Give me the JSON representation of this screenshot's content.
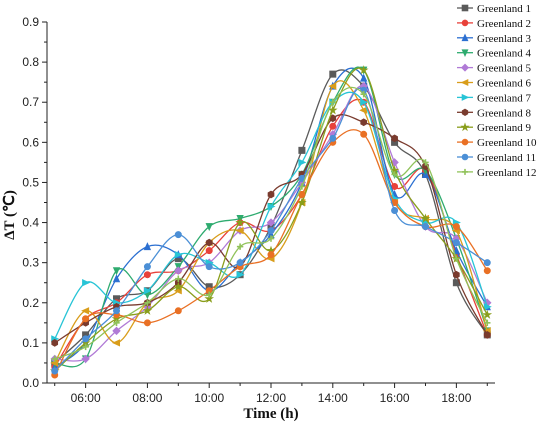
{
  "chart_data": {
    "type": "line",
    "title": "",
    "xlabel": "Time (h)",
    "ylabel": "ΔT (℃)",
    "xlim": [
      4.75,
      19.25
    ],
    "ylim": [
      0,
      0.9
    ],
    "x_ticks": [
      6,
      8,
      10,
      12,
      14,
      16,
      18
    ],
    "x_tick_labels": [
      "06:00",
      "08:00",
      "10:00",
      "12:00",
      "14:00",
      "16:00",
      "18:00"
    ],
    "y_ticks": [
      0,
      0.1,
      0.2,
      0.3,
      0.4,
      0.5,
      0.6,
      0.7,
      0.8,
      0.9
    ],
    "y_tick_labels": [
      "0.0",
      "0.1",
      "0.2",
      "0.3",
      "0.4",
      "0.5",
      "0.6",
      "0.7",
      "0.8",
      "0.9"
    ],
    "grid": false,
    "legend_position": "top-right",
    "smoothed": true,
    "x": [
      5,
      6,
      7,
      8,
      9,
      10,
      11,
      12,
      13,
      14,
      15,
      16,
      17,
      18,
      19
    ],
    "x_labels": [
      "05:00",
      "06:00",
      "07:00",
      "08:00",
      "09:00",
      "10:00",
      "11:00",
      "12:00",
      "13:00",
      "14:00",
      "15:00",
      "16:00",
      "17:00",
      "18:00",
      "19:00"
    ],
    "series": [
      {
        "name": "Greenland 1",
        "color": "#5a5a5a",
        "marker": "square",
        "values": [
          0.05,
          0.12,
          0.21,
          0.23,
          0.31,
          0.24,
          0.27,
          0.39,
          0.58,
          0.77,
          0.74,
          0.6,
          0.52,
          0.25,
          0.12
        ]
      },
      {
        "name": "Greenland 2",
        "color": "#e8413a",
        "marker": "circle",
        "values": [
          0.04,
          0.16,
          0.2,
          0.27,
          0.28,
          0.33,
          0.4,
          0.38,
          0.47,
          0.64,
          0.7,
          0.49,
          0.53,
          0.32,
          0.12
        ]
      },
      {
        "name": "Greenland 3",
        "color": "#2b6fd1",
        "marker": "triangle-up",
        "values": [
          0.04,
          0.1,
          0.26,
          0.34,
          0.32,
          0.23,
          0.3,
          0.37,
          0.5,
          0.74,
          0.76,
          0.47,
          0.52,
          0.33,
          0.19
        ]
      },
      {
        "name": "Greenland 4",
        "color": "#2eab6f",
        "marker": "triangle-down",
        "values": [
          0.05,
          0.06,
          0.28,
          0.22,
          0.29,
          0.39,
          0.41,
          0.44,
          0.52,
          0.7,
          0.78,
          0.52,
          0.53,
          0.36,
          0.13
        ]
      },
      {
        "name": "Greenland 5",
        "color": "#b07ad6",
        "marker": "diamond",
        "values": [
          0.06,
          0.06,
          0.13,
          0.19,
          0.28,
          0.3,
          0.38,
          0.4,
          0.5,
          0.62,
          0.74,
          0.55,
          0.39,
          0.36,
          0.2
        ]
      },
      {
        "name": "Greenland 6",
        "color": "#d99d1b",
        "marker": "triangle-left",
        "values": [
          0.05,
          0.18,
          0.1,
          0.2,
          0.23,
          0.35,
          0.38,
          0.31,
          0.45,
          0.74,
          0.68,
          0.45,
          0.41,
          0.38,
          0.13
        ]
      },
      {
        "name": "Greenland 7",
        "color": "#27c4d6",
        "marker": "triangle-right",
        "values": [
          0.11,
          0.25,
          0.2,
          0.23,
          0.32,
          0.3,
          0.27,
          0.44,
          0.55,
          0.7,
          0.7,
          0.46,
          0.4,
          0.4,
          0.19
        ]
      },
      {
        "name": "Greenland 8",
        "color": "#7a3b2e",
        "marker": "hexagon",
        "values": [
          0.1,
          0.15,
          0.19,
          0.2,
          0.25,
          0.35,
          0.29,
          0.47,
          0.52,
          0.66,
          0.65,
          0.61,
          0.54,
          0.27,
          0.12
        ]
      },
      {
        "name": "Greenland 9",
        "color": "#8a9e1c",
        "marker": "star",
        "values": [
          0.03,
          0.1,
          0.16,
          0.18,
          0.24,
          0.21,
          0.4,
          0.33,
          0.45,
          0.68,
          0.78,
          0.53,
          0.41,
          0.31,
          0.17
        ]
      },
      {
        "name": "Greenland 10",
        "color": "#e97024",
        "marker": "circle",
        "values": [
          0.02,
          0.16,
          0.17,
          0.15,
          0.18,
          0.23,
          0.29,
          0.32,
          0.47,
          0.6,
          0.62,
          0.45,
          0.39,
          0.39,
          0.28
        ]
      },
      {
        "name": "Greenland 11",
        "color": "#4b8fd6",
        "marker": "circle",
        "values": [
          0.03,
          0.11,
          0.18,
          0.29,
          0.37,
          0.29,
          0.3,
          0.38,
          0.51,
          0.61,
          0.73,
          0.43,
          0.39,
          0.35,
          0.3
        ]
      },
      {
        "name": "Greenland 12",
        "color": "#90c25a",
        "marker": "plus",
        "values": [
          0.06,
          0.09,
          0.15,
          0.2,
          0.26,
          0.22,
          0.34,
          0.36,
          0.49,
          0.7,
          0.72,
          0.52,
          0.55,
          0.31,
          0.15
        ]
      }
    ]
  }
}
